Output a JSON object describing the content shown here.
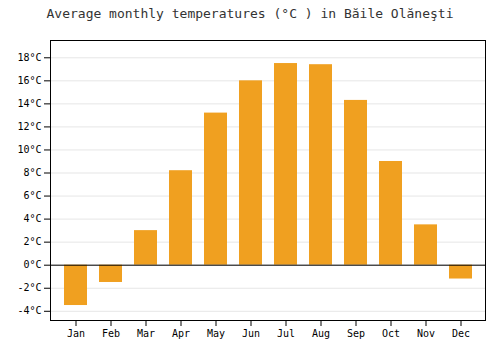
{
  "chart_data": {
    "type": "bar",
    "title": "Average monthly temperatures (°C ) in Băile Olăneşti",
    "categories": [
      "Jan",
      "Feb",
      "Mar",
      "Apr",
      "May",
      "Jun",
      "Jul",
      "Aug",
      "Sep",
      "Oct",
      "Nov",
      "Dec"
    ],
    "values": [
      -3.5,
      -1.5,
      3.0,
      8.2,
      13.2,
      16.0,
      17.5,
      17.4,
      14.3,
      9.0,
      3.5,
      -1.2
    ],
    "color": "#F0A020",
    "ylim": [
      -4.8,
      19.5
    ],
    "yticks": [
      {
        "value": -4,
        "label": "-4°C"
      },
      {
        "value": -2,
        "label": "-2°C"
      },
      {
        "value": 0,
        "label": "0°C"
      },
      {
        "value": 2,
        "label": "2°C"
      },
      {
        "value": 4,
        "label": "4°C"
      },
      {
        "value": 6,
        "label": "6°C"
      },
      {
        "value": 8,
        "label": "8°C"
      },
      {
        "value": 10,
        "label": "10°C"
      },
      {
        "value": 12,
        "label": "12°C"
      },
      {
        "value": 14,
        "label": "14°C"
      },
      {
        "value": 16,
        "label": "16°C"
      },
      {
        "value": 18,
        "label": "18°C"
      }
    ],
    "grid": true
  }
}
